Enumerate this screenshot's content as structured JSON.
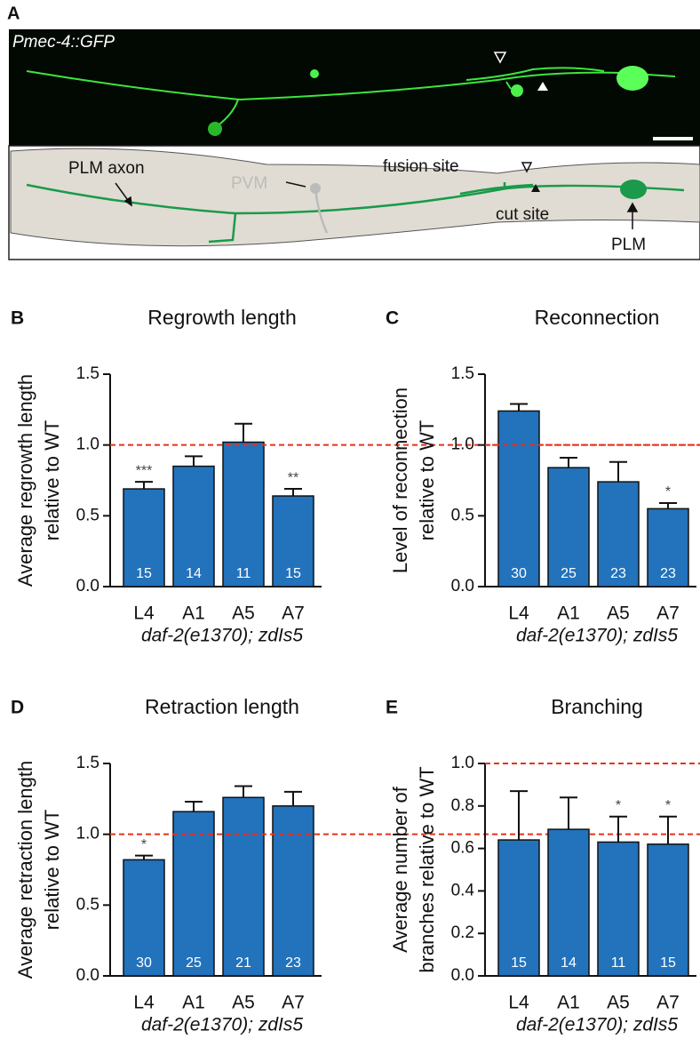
{
  "panel_a": {
    "panel_label": "A",
    "image_label": "Pmec-4::GFP",
    "diagram_labels": {
      "axon": "PLM axon",
      "pvm": "PVM",
      "fusion": "fusion site",
      "cut": "cut site",
      "plm": "PLM"
    }
  },
  "chart_data": [
    {
      "type": "bar",
      "panel_label": "B",
      "title": "Regrowth length",
      "ylabel": [
        "Average regrowth length",
        "relative to WT"
      ],
      "xlabel": "daf-2(e1370); zdIs5",
      "categories": [
        "L4",
        "A1",
        "A5",
        "A7"
      ],
      "values": [
        0.69,
        0.85,
        1.02,
        0.64
      ],
      "errors": [
        0.05,
        0.07,
        0.13,
        0.05
      ],
      "n_labels": [
        "15",
        "14",
        "11",
        "15"
      ],
      "significance": [
        "***",
        null,
        null,
        "**"
      ],
      "color": "#2272bc",
      "reference_line": 1.0,
      "reference_color": "#e8301c",
      "ylim": [
        0,
        1.5
      ],
      "yticks": [
        {
          "value": 0,
          "label": "0.0"
        },
        0.5,
        {
          "value": 1,
          "label": "1.0"
        },
        1.5
      ]
    },
    {
      "type": "bar",
      "panel_label": "C",
      "title": "Reconnection",
      "ylabel": [
        "Level of reconnection",
        "relative to WT"
      ],
      "xlabel": "daf-2(e1370); zdIs5",
      "categories": [
        "L4",
        "A1",
        "A5",
        "A7"
      ],
      "values": [
        1.24,
        0.84,
        0.74,
        0.55
      ],
      "errors": [
        0.05,
        0.07,
        0.14,
        0.04
      ],
      "n_labels": [
        "30",
        "25",
        "23",
        "23"
      ],
      "significance": [
        null,
        null,
        null,
        "*"
      ],
      "color": "#2272bc",
      "reference_line": 1.0,
      "reference_color": "#e8301c",
      "ylim": [
        0,
        1.5
      ],
      "yticks": [
        {
          "value": 0,
          "label": "0.0"
        },
        0.5,
        {
          "value": 1,
          "label": "1.0"
        },
        1.5
      ]
    },
    {
      "type": "bar",
      "panel_label": "D",
      "title": "Retraction length",
      "ylabel": [
        "Average retraction length",
        "relative to WT"
      ],
      "xlabel": "daf-2(e1370); zdIs5",
      "categories": [
        "L4",
        "A1",
        "A5",
        "A7"
      ],
      "values": [
        0.82,
        1.16,
        1.26,
        1.2
      ],
      "errors": [
        0.03,
        0.07,
        0.08,
        0.1
      ],
      "n_labels": [
        "30",
        "25",
        "21",
        "23"
      ],
      "significance": [
        "*",
        null,
        null,
        null
      ],
      "color": "#2272bc",
      "reference_line": 1.0,
      "reference_color": "#e8301c",
      "ylim": [
        0,
        1.5
      ],
      "yticks": [
        {
          "value": 0,
          "label": "0.0"
        },
        0.5,
        {
          "value": 1,
          "label": "1.0"
        },
        1.5
      ]
    },
    {
      "type": "bar",
      "panel_label": "E",
      "title": "Branching",
      "ylabel": [
        "Average number of",
        "branches relative to WT"
      ],
      "xlabel": "daf-2(e1370); zdIs5",
      "categories": [
        "L4",
        "A1",
        "A5",
        "A7"
      ],
      "values": [
        0.64,
        0.69,
        0.63,
        0.62
      ],
      "errors": [
        0.23,
        0.15,
        0.12,
        0.13
      ],
      "n_labels": [
        "15",
        "14",
        "11",
        "15"
      ],
      "significance": [
        null,
        null,
        "*",
        "*"
      ],
      "color": "#2272bc",
      "reference_line": 1.0,
      "reference_color": "#e8301c",
      "ylim": [
        0,
        1
      ],
      "yticks": [
        {
          "value": 0,
          "label": "0.0"
        },
        0.2,
        0.4,
        0.6,
        0.8,
        {
          "value": 1,
          "label": "1.0"
        }
      ]
    }
  ]
}
